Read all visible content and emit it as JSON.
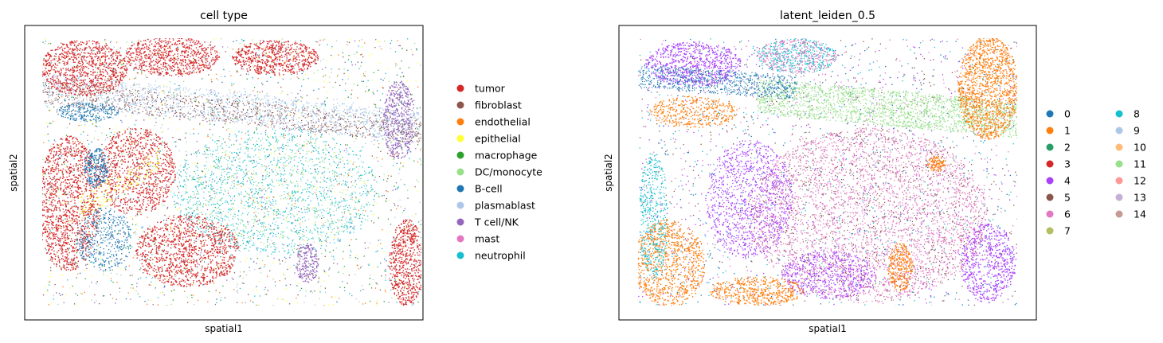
{
  "chart_data": [
    {
      "type": "scatter",
      "title": "cell type",
      "xlabel": "spatial1",
      "ylabel": "spatial2",
      "grid": false,
      "ticks": "none",
      "legend_position": "right",
      "legend_columns": 1,
      "series": [
        {
          "name": "tumor",
          "color": "#d62728"
        },
        {
          "name": "fibroblast",
          "color": "#8c564b"
        },
        {
          "name": "endothelial",
          "color": "#ff7f0e"
        },
        {
          "name": "epithelial",
          "color": "#ffff33"
        },
        {
          "name": "macrophage",
          "color": "#2ca02c"
        },
        {
          "name": "DC/monocyte",
          "color": "#98df8a"
        },
        {
          "name": "B-cell",
          "color": "#1f77b4"
        },
        {
          "name": "plasmablast",
          "color": "#aec7e8"
        },
        {
          "name": "T cell/NK",
          "color": "#9467bd"
        },
        {
          "name": "mast",
          "color": "#e377c2"
        },
        {
          "name": "neutrophil",
          "color": "#17becf"
        }
      ]
    },
    {
      "type": "scatter",
      "title": "latent_leiden_0.5",
      "xlabel": "spatial1",
      "ylabel": "spatial2",
      "grid": false,
      "ticks": "none",
      "legend_position": "right",
      "legend_columns": 2,
      "series": [
        {
          "name": "0",
          "color": "#1f77b4"
        },
        {
          "name": "1",
          "color": "#ff7f0e"
        },
        {
          "name": "2",
          "color": "#279e68"
        },
        {
          "name": "3",
          "color": "#d62728"
        },
        {
          "name": "4",
          "color": "#aa40fc"
        },
        {
          "name": "5",
          "color": "#8c564b"
        },
        {
          "name": "6",
          "color": "#e377c2"
        },
        {
          "name": "7",
          "color": "#b5bd61"
        },
        {
          "name": "8",
          "color": "#17becf"
        },
        {
          "name": "9",
          "color": "#aec7e8"
        },
        {
          "name": "10",
          "color": "#ffbb78"
        },
        {
          "name": "11",
          "color": "#98df8a"
        },
        {
          "name": "12",
          "color": "#ff9896"
        },
        {
          "name": "13",
          "color": "#c5b0d5"
        },
        {
          "name": "14",
          "color": "#c49c94"
        }
      ]
    }
  ]
}
